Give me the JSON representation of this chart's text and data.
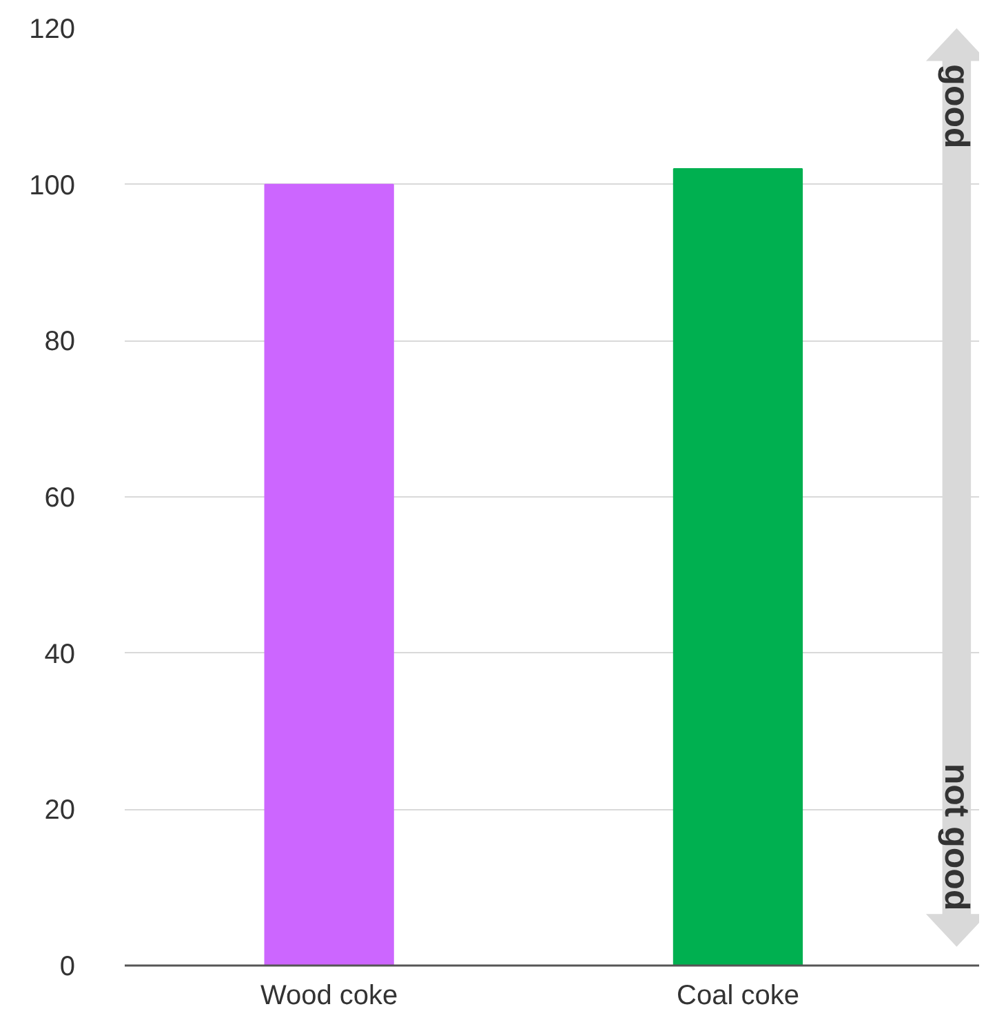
{
  "chart_data": {
    "type": "bar",
    "categories": [
      "Wood coke",
      "Coal coke"
    ],
    "values": [
      100,
      102
    ],
    "colors": [
      "#cc66ff",
      "#00b050"
    ],
    "ylim": [
      0,
      120
    ],
    "yticks": [
      0,
      20,
      40,
      60,
      80,
      100,
      120
    ],
    "grid": "y",
    "annotations": [
      "good",
      "not good"
    ]
  }
}
